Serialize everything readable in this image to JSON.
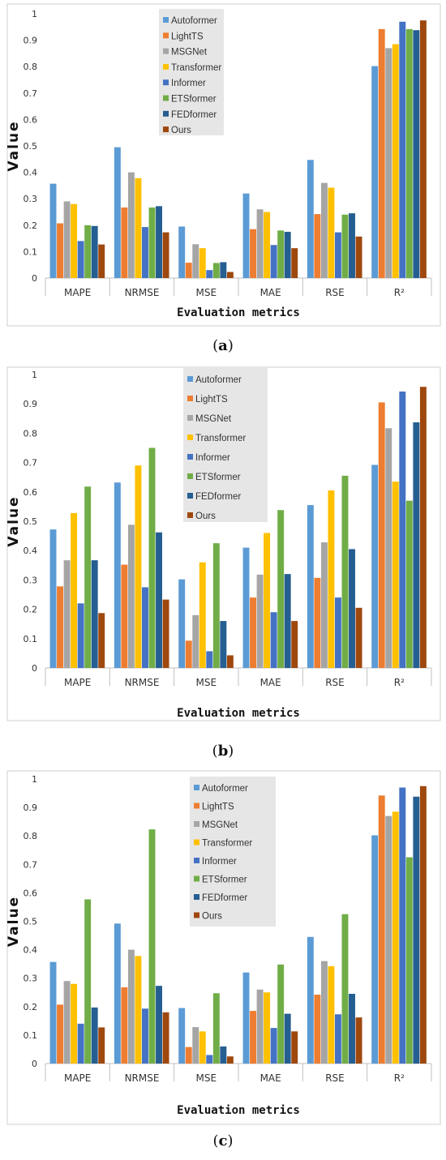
{
  "colors": {
    "Autoformer": "#5B9BD5",
    "LightTS": "#ED7D31",
    "MSGNet": "#A5A5A5",
    "Transformer": "#FFC000",
    "Informer": "#4472C4",
    "ETSformer": "#70AD47",
    "FEDformer": "#255E91",
    "Ours": "#9E480E"
  },
  "chart_data": [
    {
      "type": "bar",
      "panel_label": "a",
      "xlabel": "Evaluation metrics",
      "ylabel": "Value",
      "ylim": [
        0,
        1
      ],
      "yticks": [
        "0",
        "0.1",
        "0.2",
        "0.3",
        "0.4",
        "0.5",
        "0.6",
        "0.7",
        "0.8",
        "0.9",
        "1"
      ],
      "categories": [
        "MAPE",
        "NRMSE",
        "MSE",
        "MAE",
        "RSE",
        "R²"
      ],
      "legend_position": "top-center",
      "grid": false,
      "series": [
        {
          "name": "Autoformer",
          "values": [
            0.357,
            0.495,
            0.195,
            0.32,
            0.447,
            0.802
          ]
        },
        {
          "name": "LightTS",
          "values": [
            0.207,
            0.267,
            0.058,
            0.185,
            0.242,
            0.942
          ]
        },
        {
          "name": "MSGNet",
          "values": [
            0.29,
            0.4,
            0.128,
            0.26,
            0.36,
            0.87
          ]
        },
        {
          "name": "Transformer",
          "values": [
            0.28,
            0.378,
            0.113,
            0.25,
            0.342,
            0.885
          ]
        },
        {
          "name": "Informer",
          "values": [
            0.14,
            0.193,
            0.03,
            0.125,
            0.173,
            0.97
          ]
        },
        {
          "name": "ETSformer",
          "values": [
            0.2,
            0.267,
            0.057,
            0.18,
            0.24,
            0.942
          ]
        },
        {
          "name": "FEDformer",
          "values": [
            0.197,
            0.272,
            0.06,
            0.175,
            0.245,
            0.938
          ]
        },
        {
          "name": "Ours",
          "values": [
            0.127,
            0.173,
            0.023,
            0.113,
            0.157,
            0.975
          ]
        }
      ]
    },
    {
      "type": "bar",
      "panel_label": "b",
      "xlabel": "Evaluation metrics",
      "ylabel": "Value",
      "ylim": [
        0,
        1
      ],
      "yticks": [
        "0",
        "0.1",
        "0.2",
        "0.3",
        "0.4",
        "0.5",
        "0.6",
        "0.7",
        "0.8",
        "0.9",
        "1"
      ],
      "categories": [
        "MAPE",
        "NRMSE",
        "MSE",
        "MAE",
        "RSE",
        "R²"
      ],
      "legend_position": "top-center",
      "grid": false,
      "series": [
        {
          "name": "Autoformer",
          "values": [
            0.472,
            0.632,
            0.302,
            0.41,
            0.555,
            0.692
          ]
        },
        {
          "name": "LightTS",
          "values": [
            0.278,
            0.352,
            0.093,
            0.24,
            0.307,
            0.905
          ]
        },
        {
          "name": "MSGNet",
          "values": [
            0.367,
            0.488,
            0.18,
            0.318,
            0.428,
            0.817
          ]
        },
        {
          "name": "Transformer",
          "values": [
            0.528,
            0.69,
            0.36,
            0.46,
            0.605,
            0.635
          ]
        },
        {
          "name": "Informer",
          "values": [
            0.22,
            0.275,
            0.057,
            0.19,
            0.24,
            0.942
          ]
        },
        {
          "name": "ETSformer",
          "values": [
            0.618,
            0.75,
            0.425,
            0.538,
            0.655,
            0.57
          ]
        },
        {
          "name": "FEDformer",
          "values": [
            0.367,
            0.462,
            0.16,
            0.32,
            0.405,
            0.837
          ]
        },
        {
          "name": "Ours",
          "values": [
            0.187,
            0.233,
            0.043,
            0.16,
            0.205,
            0.958
          ]
        }
      ]
    },
    {
      "type": "bar",
      "panel_label": "c",
      "xlabel": "Evaluation metrics",
      "ylabel": "Value",
      "ylim": [
        0,
        1
      ],
      "yticks": [
        "0",
        "0.1",
        "0.2",
        "0.3",
        "0.4",
        "0.5",
        "0.6",
        "0.7",
        "0.8",
        "0.9",
        "1"
      ],
      "categories": [
        "MAPE",
        "NRMSE",
        "MSE",
        "MAE",
        "RSE",
        "R²"
      ],
      "legend_position": "top-center",
      "grid": false,
      "series": [
        {
          "name": "Autoformer",
          "values": [
            0.357,
            0.492,
            0.195,
            0.32,
            0.445,
            0.802
          ]
        },
        {
          "name": "LightTS",
          "values": [
            0.207,
            0.268,
            0.058,
            0.185,
            0.242,
            0.942
          ]
        },
        {
          "name": "MSGNet",
          "values": [
            0.29,
            0.4,
            0.128,
            0.26,
            0.36,
            0.87
          ]
        },
        {
          "name": "Transformer",
          "values": [
            0.28,
            0.378,
            0.113,
            0.25,
            0.342,
            0.885
          ]
        },
        {
          "name": "Informer",
          "values": [
            0.14,
            0.193,
            0.03,
            0.125,
            0.173,
            0.97
          ]
        },
        {
          "name": "ETSformer",
          "values": [
            0.577,
            0.823,
            0.247,
            0.348,
            0.525,
            0.725
          ]
        },
        {
          "name": "FEDformer",
          "values": [
            0.197,
            0.273,
            0.06,
            0.175,
            0.245,
            0.938
          ]
        },
        {
          "name": "Ours",
          "values": [
            0.127,
            0.18,
            0.025,
            0.113,
            0.162,
            0.975
          ]
        }
      ]
    }
  ]
}
